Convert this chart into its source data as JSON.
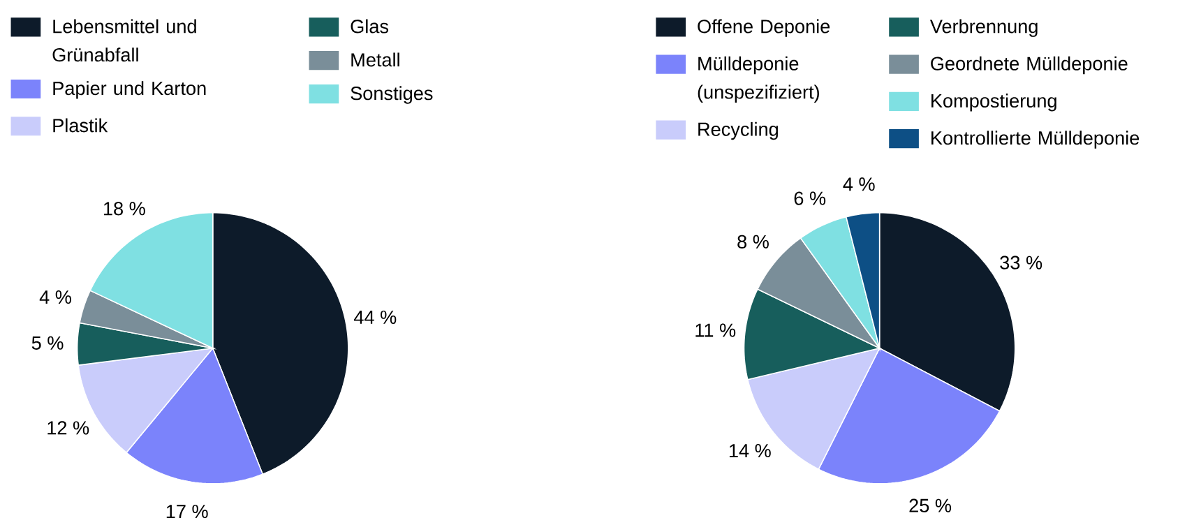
{
  "chart_data": [
    {
      "type": "pie",
      "legend": "top",
      "categories": [
        "Lebensmittel und Grünabfall",
        "Papier und Karton",
        "Plastik",
        "Glas",
        "Metall",
        "Sonstiges"
      ],
      "values": [
        44,
        17,
        12,
        5,
        4,
        18
      ],
      "value_labels": [
        "44 %",
        "17 %",
        "12 %",
        "5 %",
        "4 %",
        "18 %"
      ],
      "colors": [
        "#0d1b2a",
        "#7b83fb",
        "#c9ccfb",
        "#175e5c",
        "#7a8e99",
        "#7fe0e2"
      ]
    },
    {
      "type": "pie",
      "legend": "top",
      "categories": [
        "Offene Deponie",
        "Mülldeponie (unspezifiziert)",
        "Recycling",
        "Verbrennung",
        "Geordnete Mülldeponie",
        "Kompostierung",
        "Kontrollierte Mülldeponie"
      ],
      "values": [
        33,
        25,
        14,
        11,
        8,
        6,
        4
      ],
      "value_labels": [
        "33 %",
        "25 %",
        "14 %",
        "11 %",
        "8 %",
        "6 %",
        "4 %"
      ],
      "colors": [
        "#0d1b2a",
        "#7b83fb",
        "#c9ccfb",
        "#175e5c",
        "#7a8e99",
        "#7fe0e2",
        "#0d4f85"
      ]
    }
  ]
}
